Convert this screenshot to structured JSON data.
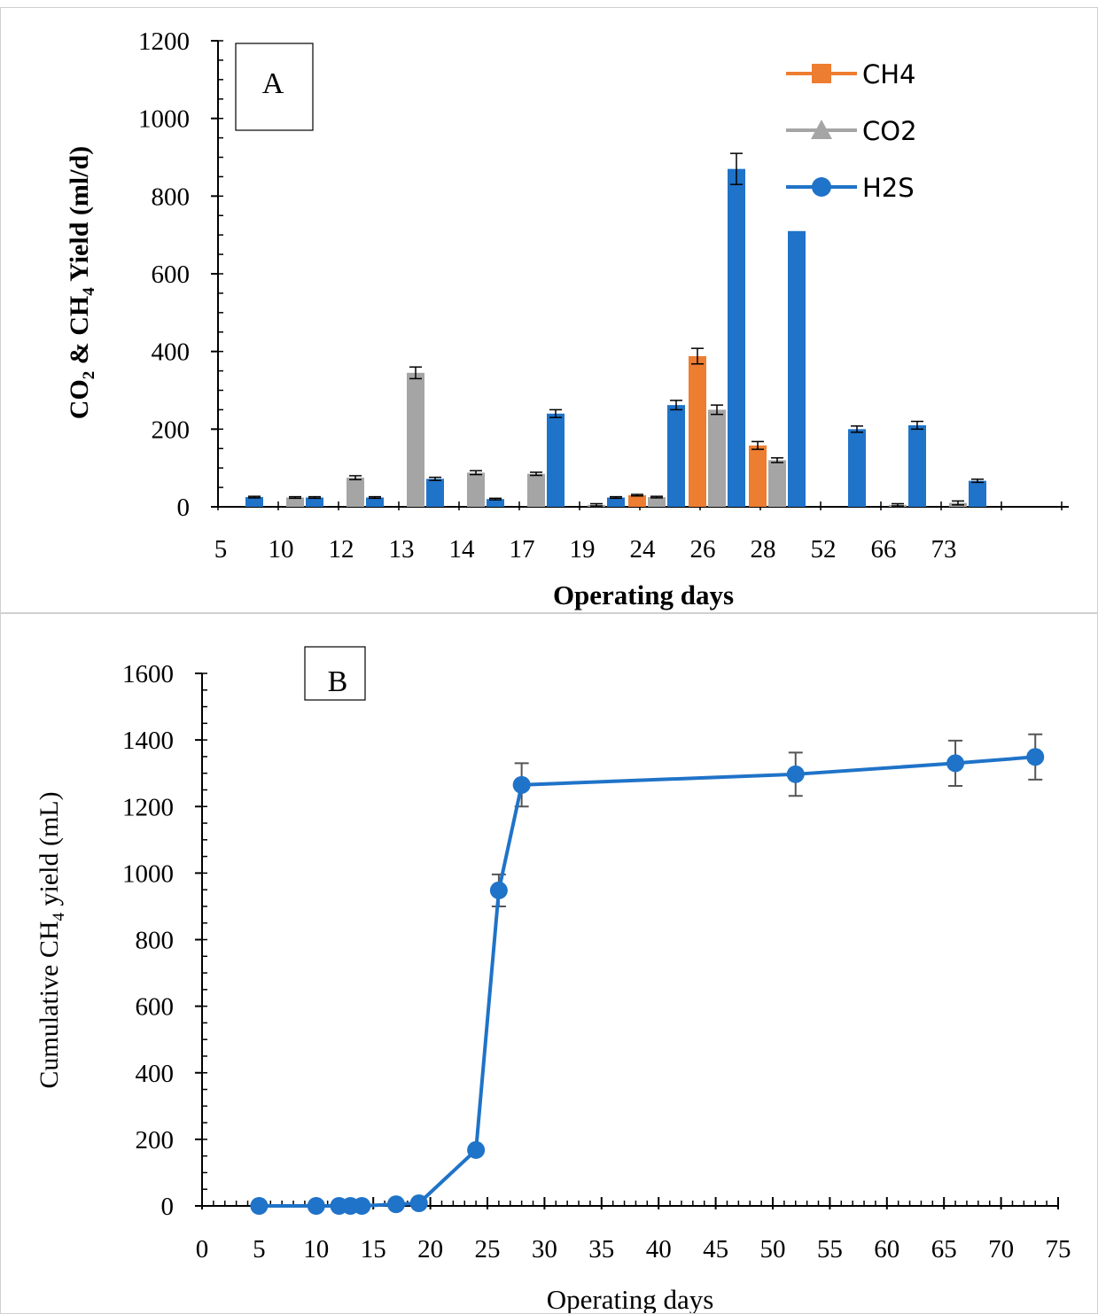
{
  "chart_data": [
    {
      "panel_label": "A",
      "type": "bar",
      "xlabel": "Operating days",
      "ylabel_parts": [
        "CO",
        "2",
        " & CH",
        "4",
        " Yield (ml/d)"
      ],
      "categories": [
        "5",
        "10",
        "12",
        "13",
        "14",
        "17",
        "19",
        "24",
        "26",
        "28",
        "52",
        "66",
        "73"
      ],
      "ylim": [
        0,
        1200
      ],
      "yticks": [
        "0",
        "200",
        "400",
        "600",
        "800",
        "1000",
        "1200"
      ],
      "legend_position": "top-right",
      "series": [
        {
          "name": "CH4",
          "color": "#ED7D31",
          "values": [
            0,
            0,
            0,
            0,
            0,
            0,
            0,
            30,
            388,
            158,
            0,
            0,
            0
          ],
          "errors": [
            0,
            0,
            0,
            0,
            0,
            0,
            0,
            2,
            20,
            10,
            0,
            0,
            0
          ]
        },
        {
          "name": "CO2",
          "color": "#A5A5A5",
          "values": [
            0,
            24,
            75,
            345,
            88,
            85,
            5,
            25,
            250,
            120,
            0,
            5,
            10
          ],
          "errors": [
            0,
            2,
            5,
            15,
            5,
            4,
            3,
            2,
            12,
            6,
            0,
            3,
            5
          ]
        },
        {
          "name": "H2S",
          "color": "#1F73C8",
          "values": [
            25,
            24,
            24,
            72,
            20,
            240,
            24,
            262,
            870,
            710,
            200,
            210,
            67
          ],
          "errors": [
            2,
            2,
            2,
            4,
            2,
            10,
            2,
            12,
            40,
            0,
            8,
            10,
            4
          ]
        }
      ]
    },
    {
      "panel_label": "B",
      "type": "line",
      "xlabel": "Operating days",
      "ylabel_parts": [
        "Cumulative CH",
        "4",
        " yield (mL)"
      ],
      "x": [
        5,
        10,
        12,
        13,
        14,
        17,
        19,
        24,
        26,
        28,
        52,
        66,
        73
      ],
      "y": [
        0,
        0,
        0,
        0,
        0,
        5,
        8,
        168,
        948,
        1265,
        1297,
        1330,
        1349
      ],
      "errors": [
        0,
        0,
        0,
        0,
        0,
        0,
        0,
        0,
        48,
        65,
        65,
        68,
        68
      ],
      "xlim": [
        0,
        75
      ],
      "ylim": [
        0,
        1600
      ],
      "xticks": [
        "0",
        "5",
        "10",
        "15",
        "20",
        "25",
        "30",
        "35",
        "40",
        "45",
        "50",
        "55",
        "60",
        "65",
        "70",
        "75"
      ],
      "yticks": [
        "0",
        "200",
        "400",
        "600",
        "800",
        "1000",
        "1200",
        "1400",
        "1600"
      ],
      "color": "#1F73C8"
    }
  ]
}
